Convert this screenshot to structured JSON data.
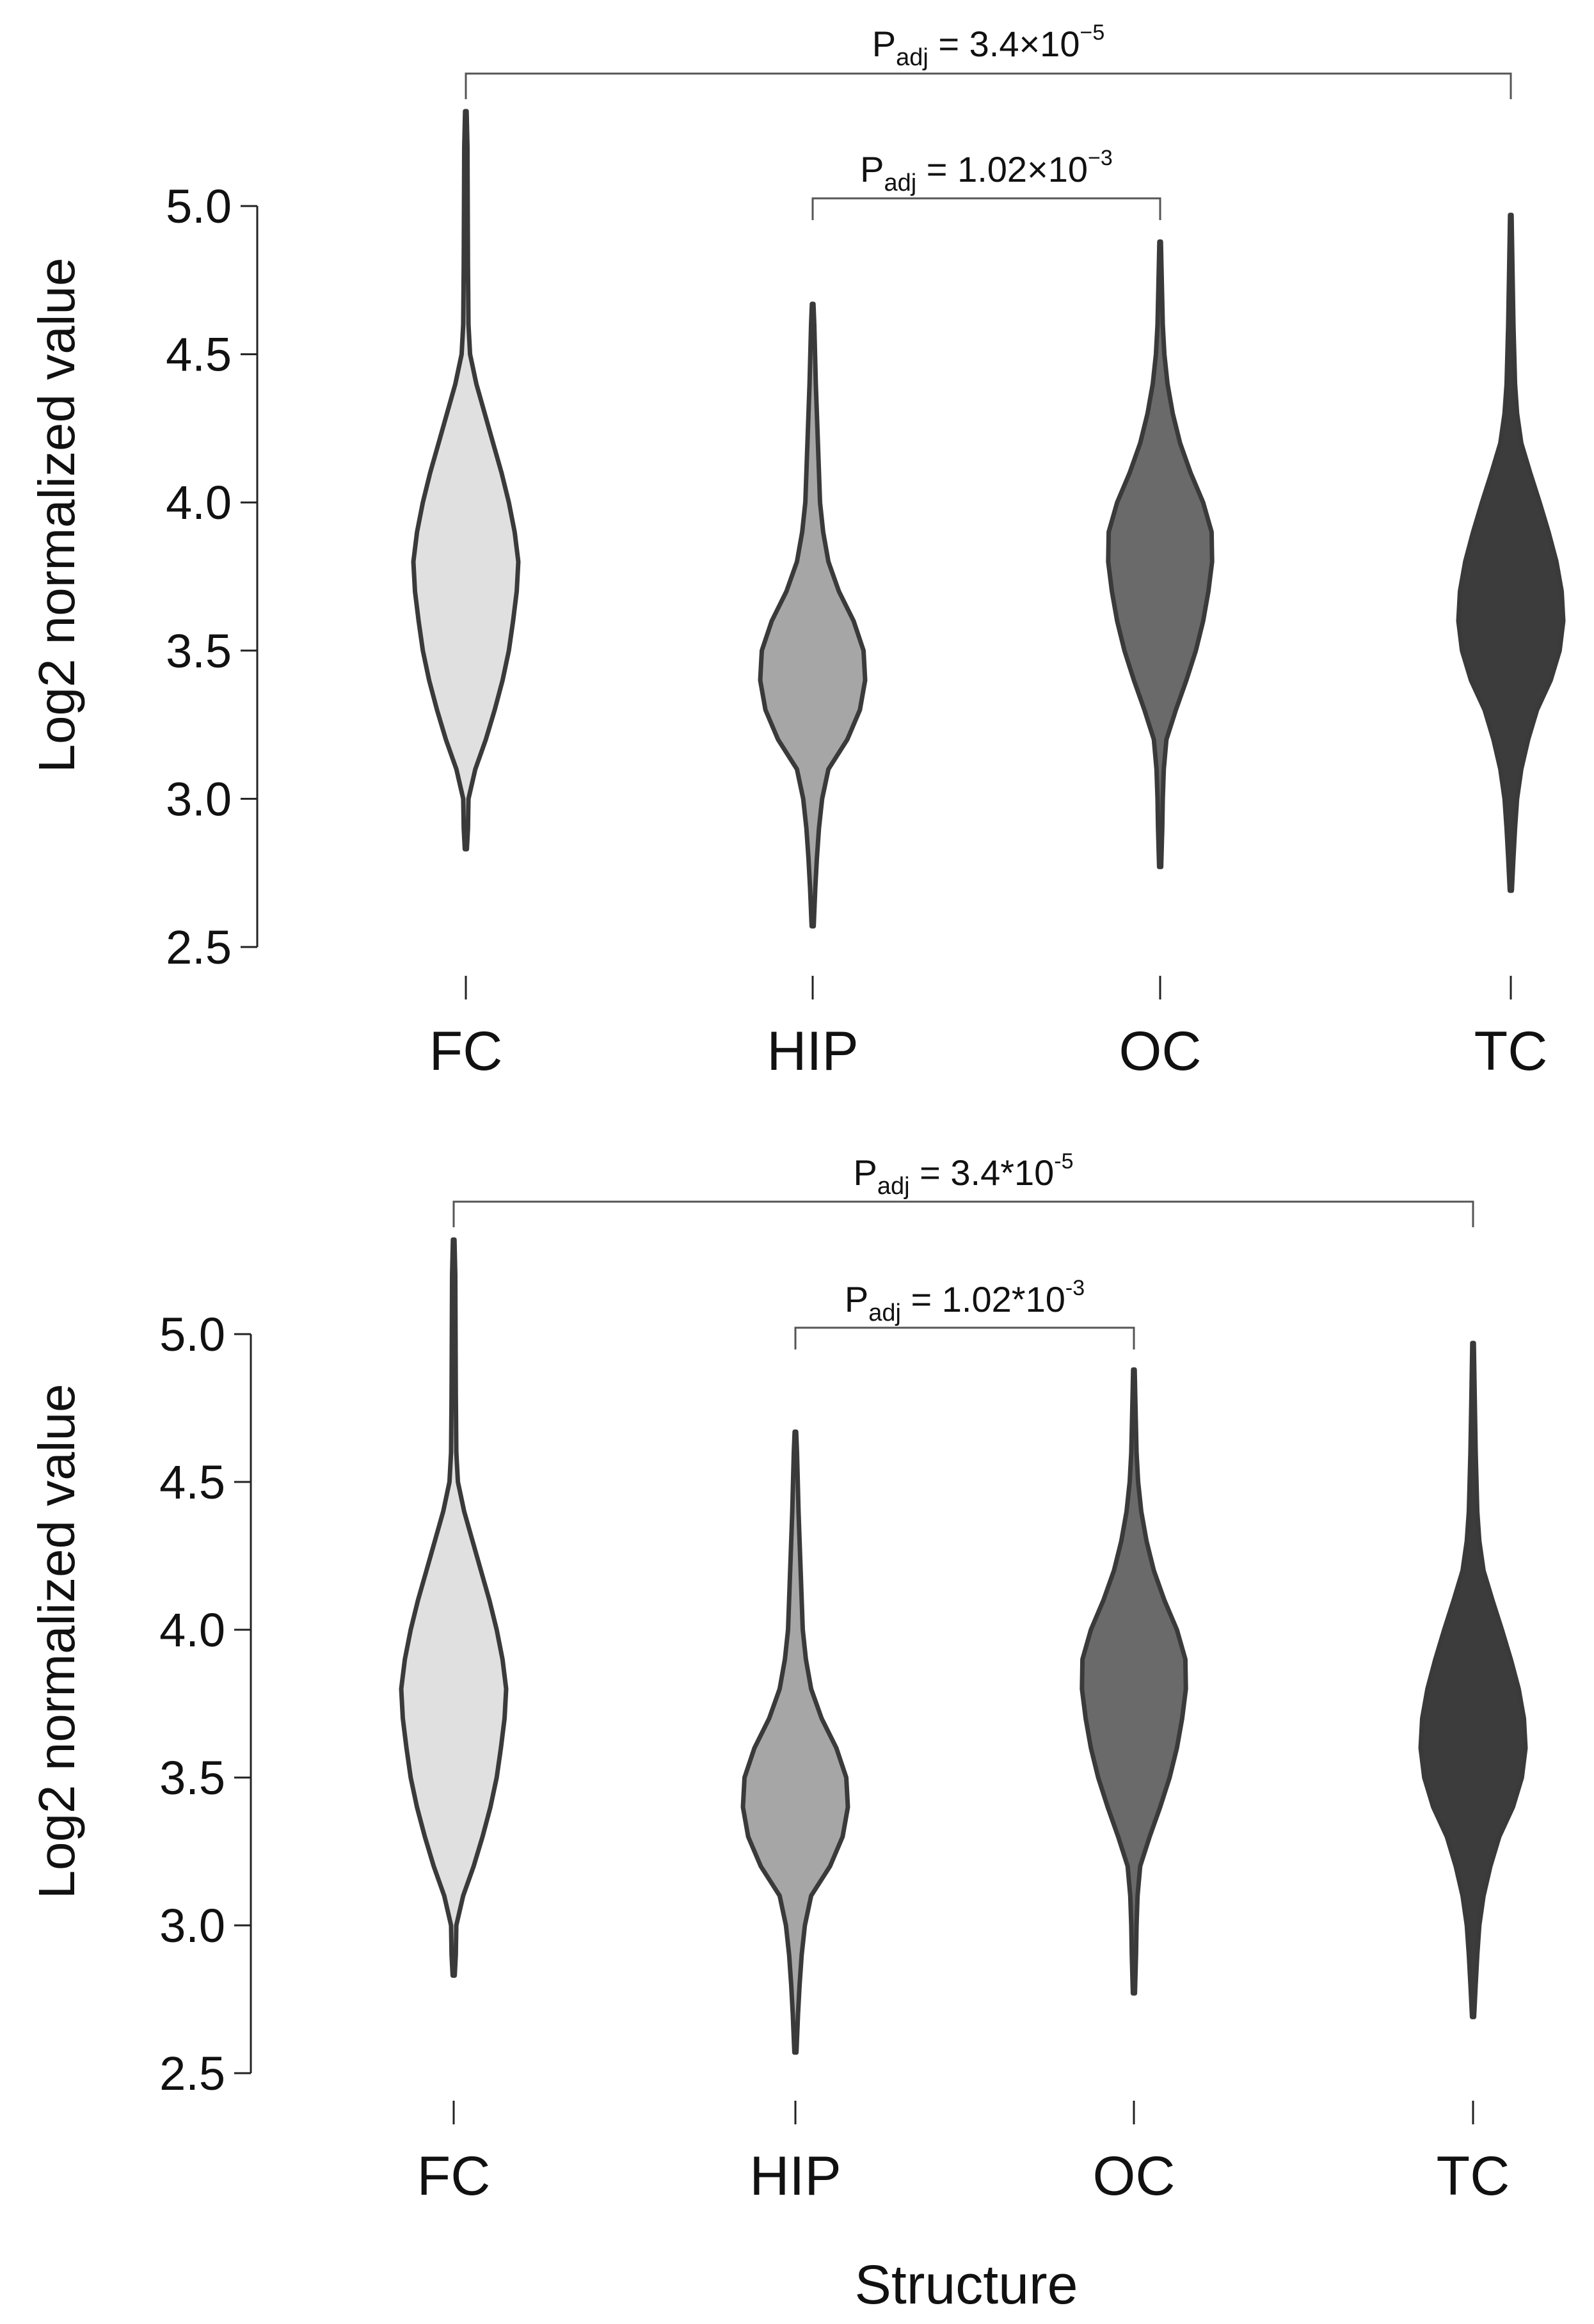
{
  "chart_data": [
    {
      "type": "violin",
      "ylabel": "Log2 normalized value",
      "xlabel": "",
      "ylim": [
        2.5,
        5.0
      ],
      "yticks": [
        "2.5",
        "3.0",
        "3.5",
        "4.0",
        "4.5",
        "5.0"
      ],
      "yticks_values": [
        2.5,
        3.0,
        3.5,
        4.0,
        4.5,
        5.0
      ],
      "categories": [
        "FC",
        "HIP",
        "OC",
        "TC"
      ],
      "fill_colors": [
        "#e0e0e0",
        "#a6a6a6",
        "#6a6a6a",
        "#3c3c3c"
      ],
      "series": [
        {
          "name": "FC",
          "min": 2.83,
          "max": 5.32,
          "density": [
            [
              2.83,
              0.02
            ],
            [
              2.9,
              0.04
            ],
            [
              3.0,
              0.05
            ],
            [
              3.1,
              0.18
            ],
            [
              3.2,
              0.38
            ],
            [
              3.3,
              0.55
            ],
            [
              3.4,
              0.7
            ],
            [
              3.5,
              0.82
            ],
            [
              3.6,
              0.9
            ],
            [
              3.7,
              0.97
            ],
            [
              3.8,
              1.0
            ],
            [
              3.9,
              0.93
            ],
            [
              4.0,
              0.82
            ],
            [
              4.1,
              0.68
            ],
            [
              4.2,
              0.52
            ],
            [
              4.3,
              0.36
            ],
            [
              4.4,
              0.2
            ],
            [
              4.5,
              0.08
            ],
            [
              4.6,
              0.05
            ],
            [
              4.8,
              0.04
            ],
            [
              5.0,
              0.035
            ],
            [
              5.2,
              0.03
            ],
            [
              5.32,
              0.015
            ]
          ]
        },
        {
          "name": "HIP",
          "min": 2.57,
          "max": 4.67,
          "density": [
            [
              2.57,
              0.02
            ],
            [
              2.7,
              0.05
            ],
            [
              2.8,
              0.08
            ],
            [
              2.9,
              0.12
            ],
            [
              3.0,
              0.18
            ],
            [
              3.1,
              0.3
            ],
            [
              3.2,
              0.66
            ],
            [
              3.3,
              0.9
            ],
            [
              3.4,
              1.0
            ],
            [
              3.5,
              0.97
            ],
            [
              3.6,
              0.78
            ],
            [
              3.7,
              0.5
            ],
            [
              3.8,
              0.3
            ],
            [
              3.9,
              0.2
            ],
            [
              4.0,
              0.14
            ],
            [
              4.2,
              0.1
            ],
            [
              4.4,
              0.06
            ],
            [
              4.6,
              0.03
            ],
            [
              4.67,
              0.015
            ]
          ]
        },
        {
          "name": "OC",
          "min": 2.77,
          "max": 4.88,
          "density": [
            [
              2.77,
              0.02
            ],
            [
              2.9,
              0.04
            ],
            [
              3.0,
              0.05
            ],
            [
              3.1,
              0.07
            ],
            [
              3.2,
              0.12
            ],
            [
              3.3,
              0.3
            ],
            [
              3.4,
              0.5
            ],
            [
              3.5,
              0.68
            ],
            [
              3.6,
              0.82
            ],
            [
              3.7,
              0.92
            ],
            [
              3.8,
              0.99
            ],
            [
              3.9,
              0.98
            ],
            [
              4.0,
              0.82
            ],
            [
              4.1,
              0.58
            ],
            [
              4.2,
              0.38
            ],
            [
              4.3,
              0.24
            ],
            [
              4.4,
              0.14
            ],
            [
              4.5,
              0.08
            ],
            [
              4.6,
              0.05
            ],
            [
              4.8,
              0.025
            ],
            [
              4.88,
              0.015
            ]
          ]
        },
        {
          "name": "TC",
          "min": 2.69,
          "max": 4.97,
          "density": [
            [
              2.69,
              0.02
            ],
            [
              2.8,
              0.05
            ],
            [
              2.9,
              0.08
            ],
            [
              3.0,
              0.12
            ],
            [
              3.1,
              0.2
            ],
            [
              3.2,
              0.33
            ],
            [
              3.3,
              0.5
            ],
            [
              3.4,
              0.76
            ],
            [
              3.5,
              0.93
            ],
            [
              3.6,
              1.0
            ],
            [
              3.7,
              0.97
            ],
            [
              3.8,
              0.87
            ],
            [
              3.9,
              0.72
            ],
            [
              4.0,
              0.55
            ],
            [
              4.1,
              0.37
            ],
            [
              4.2,
              0.2
            ],
            [
              4.3,
              0.12
            ],
            [
              4.4,
              0.08
            ],
            [
              4.6,
              0.05
            ],
            [
              4.8,
              0.03
            ],
            [
              4.97,
              0.015
            ]
          ]
        }
      ],
      "annotations": [
        {
          "from": "FC",
          "to": "TC",
          "label_base": "P",
          "label_sub": "adj",
          "label_mid": " = 3.4×10",
          "label_sup": "−5"
        },
        {
          "from": "HIP",
          "to": "OC",
          "label_base": "P",
          "label_sub": "adj",
          "label_mid": " = 1.02×10",
          "label_sup": "−3"
        }
      ]
    },
    {
      "type": "violin",
      "ylabel": "Log2 normalized value",
      "xlabel": "Structure",
      "ylim": [
        2.5,
        5.0
      ],
      "yticks": [
        "2.5",
        "3.0",
        "3.5",
        "4.0",
        "4.5",
        "5.0"
      ],
      "yticks_values": [
        2.5,
        3.0,
        3.5,
        4.0,
        4.5,
        5.0
      ],
      "categories": [
        "FC",
        "HIP",
        "OC",
        "TC"
      ],
      "fill_colors": [
        "#e0e0e0",
        "#a6a6a6",
        "#6a6a6a",
        "#3c3c3c"
      ],
      "series": [
        {
          "name": "FC",
          "min": 2.83,
          "max": 5.32,
          "density": [
            [
              2.83,
              0.02
            ],
            [
              2.9,
              0.04
            ],
            [
              3.0,
              0.05
            ],
            [
              3.1,
              0.18
            ],
            [
              3.2,
              0.38
            ],
            [
              3.3,
              0.55
            ],
            [
              3.4,
              0.7
            ],
            [
              3.5,
              0.82
            ],
            [
              3.6,
              0.9
            ],
            [
              3.7,
              0.97
            ],
            [
              3.8,
              1.0
            ],
            [
              3.9,
              0.93
            ],
            [
              4.0,
              0.82
            ],
            [
              4.1,
              0.68
            ],
            [
              4.2,
              0.52
            ],
            [
              4.3,
              0.36
            ],
            [
              4.4,
              0.2
            ],
            [
              4.5,
              0.08
            ],
            [
              4.6,
              0.05
            ],
            [
              4.8,
              0.04
            ],
            [
              5.0,
              0.035
            ],
            [
              5.2,
              0.03
            ],
            [
              5.32,
              0.015
            ]
          ]
        },
        {
          "name": "HIP",
          "min": 2.57,
          "max": 4.67,
          "density": [
            [
              2.57,
              0.02
            ],
            [
              2.7,
              0.05
            ],
            [
              2.8,
              0.08
            ],
            [
              2.9,
              0.12
            ],
            [
              3.0,
              0.18
            ],
            [
              3.1,
              0.3
            ],
            [
              3.2,
              0.66
            ],
            [
              3.3,
              0.9
            ],
            [
              3.4,
              1.0
            ],
            [
              3.5,
              0.97
            ],
            [
              3.6,
              0.78
            ],
            [
              3.7,
              0.5
            ],
            [
              3.8,
              0.3
            ],
            [
              3.9,
              0.2
            ],
            [
              4.0,
              0.14
            ],
            [
              4.2,
              0.1
            ],
            [
              4.4,
              0.06
            ],
            [
              4.6,
              0.03
            ],
            [
              4.67,
              0.015
            ]
          ]
        },
        {
          "name": "OC",
          "min": 2.77,
          "max": 4.88,
          "density": [
            [
              2.77,
              0.02
            ],
            [
              2.9,
              0.04
            ],
            [
              3.0,
              0.05
            ],
            [
              3.1,
              0.07
            ],
            [
              3.2,
              0.12
            ],
            [
              3.3,
              0.3
            ],
            [
              3.4,
              0.5
            ],
            [
              3.5,
              0.68
            ],
            [
              3.6,
              0.82
            ],
            [
              3.7,
              0.92
            ],
            [
              3.8,
              0.99
            ],
            [
              3.9,
              0.98
            ],
            [
              4.0,
              0.82
            ],
            [
              4.1,
              0.58
            ],
            [
              4.2,
              0.38
            ],
            [
              4.3,
              0.24
            ],
            [
              4.4,
              0.14
            ],
            [
              4.5,
              0.08
            ],
            [
              4.6,
              0.05
            ],
            [
              4.8,
              0.025
            ],
            [
              4.88,
              0.015
            ]
          ]
        },
        {
          "name": "TC",
          "min": 2.69,
          "max": 4.97,
          "density": [
            [
              2.69,
              0.02
            ],
            [
              2.8,
              0.05
            ],
            [
              2.9,
              0.08
            ],
            [
              3.0,
              0.12
            ],
            [
              3.1,
              0.2
            ],
            [
              3.2,
              0.33
            ],
            [
              3.3,
              0.5
            ],
            [
              3.4,
              0.76
            ],
            [
              3.5,
              0.93
            ],
            [
              3.6,
              1.0
            ],
            [
              3.7,
              0.97
            ],
            [
              3.8,
              0.87
            ],
            [
              3.9,
              0.72
            ],
            [
              4.0,
              0.55
            ],
            [
              4.1,
              0.37
            ],
            [
              4.2,
              0.2
            ],
            [
              4.3,
              0.12
            ],
            [
              4.4,
              0.08
            ],
            [
              4.6,
              0.05
            ],
            [
              4.8,
              0.03
            ],
            [
              4.97,
              0.015
            ]
          ]
        }
      ],
      "annotations": [
        {
          "from": "FC",
          "to": "TC",
          "label_base": "P",
          "label_sub": "adj",
          "label_mid": " = 3.4*10",
          "label_sup": "-5"
        },
        {
          "from": "HIP",
          "to": "OC",
          "label_base": "P",
          "label_sub": "adj",
          "label_mid": " = 1.02*10",
          "label_sup": "-3"
        }
      ]
    }
  ]
}
